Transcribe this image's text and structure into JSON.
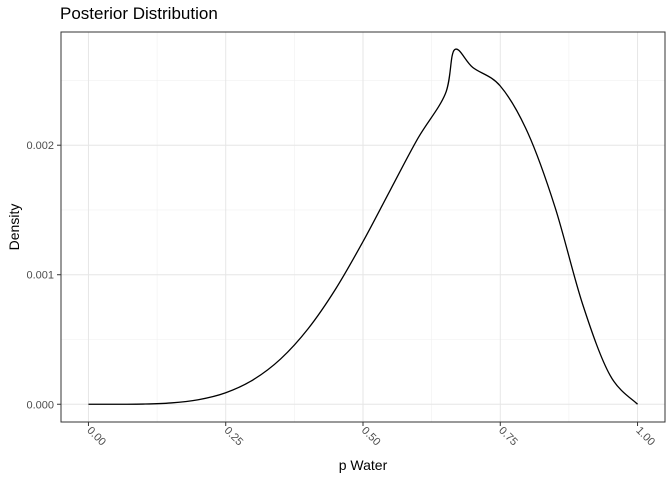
{
  "chart_data": {
    "type": "line",
    "title": "Posterior Distribution",
    "xlabel": "p Water",
    "ylabel": "Density",
    "xlim": [
      -0.05,
      1.05
    ],
    "ylim": [
      -0.000137,
      0.002874
    ],
    "x_ticks": [
      0.0,
      0.25,
      0.5,
      0.75,
      1.0
    ],
    "x_tick_labels": [
      "0.00",
      "0.25",
      "0.50",
      "0.75",
      "1.00"
    ],
    "y_ticks": [
      0.0,
      0.001,
      0.002
    ],
    "y_tick_labels": [
      "0.000",
      "0.001",
      "0.002"
    ],
    "grid": true,
    "series": [
      {
        "color": "#000000",
        "x": [
          0.0,
          0.05,
          0.1,
          0.15,
          0.2,
          0.25,
          0.3,
          0.35,
          0.4,
          0.45,
          0.5,
          0.55,
          0.6,
          0.65,
          0.6667,
          0.7,
          0.75,
          0.8,
          0.85,
          0.9,
          0.95,
          1.0
        ],
        "y": [
          0.0,
          2e-07,
          1.5e-06,
          1e-05,
          3.5e-05,
          8.9e-05,
          0.000189,
          0.00035,
          0.000583,
          0.000889,
          0.001256,
          0.001656,
          0.002053,
          0.002397,
          0.002737,
          0.0026,
          0.002457,
          0.002097,
          0.001518,
          0.000772,
          0.000223,
          0.0
        ]
      }
    ]
  }
}
